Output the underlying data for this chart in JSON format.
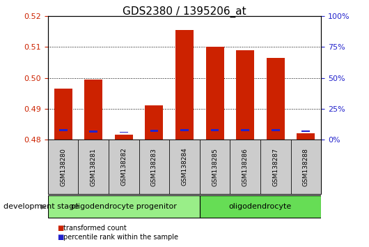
{
  "title": "GDS2380 / 1395206_at",
  "samples": [
    "GSM138280",
    "GSM138281",
    "GSM138282",
    "GSM138283",
    "GSM138284",
    "GSM138285",
    "GSM138286",
    "GSM138287",
    "GSM138288"
  ],
  "red_values": [
    0.4965,
    0.4995,
    0.4815,
    0.491,
    0.5155,
    0.51,
    0.509,
    0.5065,
    0.482
  ],
  "blue_bottoms": [
    0.4828,
    0.4823,
    0.4822,
    0.4826,
    0.4828,
    0.4828,
    0.4828,
    0.4828,
    0.4825
  ],
  "blue_heights": [
    0.0006,
    0.0006,
    0.0004,
    0.0006,
    0.0006,
    0.0006,
    0.0006,
    0.0006,
    0.0005
  ],
  "ylim_left": [
    0.48,
    0.52
  ],
  "ylim_right": [
    0,
    100
  ],
  "yticks_left": [
    0.48,
    0.49,
    0.5,
    0.51,
    0.52
  ],
  "yticks_right": [
    0,
    25,
    50,
    75,
    100
  ],
  "bar_bottom": 0.48,
  "group1_label": "oligodendrocyte progenitor",
  "group2_label": "oligodendrocyte",
  "group1_count": 5,
  "group2_count": 4,
  "dev_stage_label": "development stage",
  "legend_red": "transformed count",
  "legend_blue": "percentile rank within the sample",
  "bar_width": 0.6,
  "red_color": "#cc2200",
  "blue_color": "#2222cc",
  "group1_color": "#99ee88",
  "group2_color": "#66dd55",
  "tick_bg_color": "#cccccc",
  "title_fontsize": 11,
  "tick_fontsize": 8,
  "label_fontsize": 8
}
